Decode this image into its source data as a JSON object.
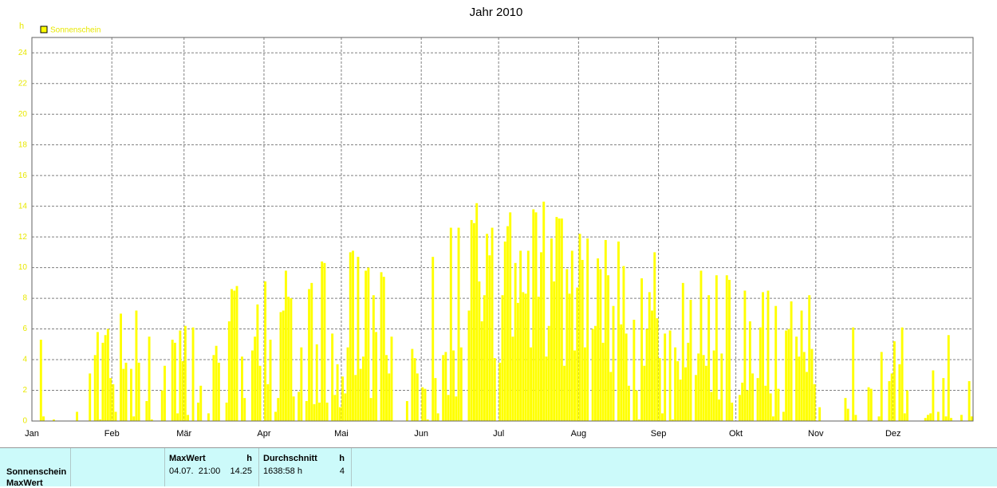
{
  "chart_data": {
    "type": "bar",
    "title": "Jahr 2010",
    "y_label": "h",
    "series": [
      {
        "name": "Sonnenschein",
        "color": "#ffff00",
        "values": [
          0,
          0,
          0,
          5.3,
          0.3,
          0,
          0,
          0,
          0.1,
          0,
          0,
          0,
          0,
          0,
          0,
          0,
          0,
          0.6,
          0,
          0,
          0,
          0,
          3.1,
          0,
          4.3,
          5.8,
          0.1,
          5.1,
          5.6,
          6,
          2.8,
          2.4,
          0.6,
          0,
          7,
          3.4,
          3.8,
          0,
          3.4,
          0.3,
          7.2,
          3.8,
          0,
          0,
          1.3,
          5.5,
          0.1,
          0,
          0,
          0,
          2,
          3.6,
          0,
          0,
          5.3,
          5.1,
          0.5,
          5.9,
          3.9,
          6.2,
          0.4,
          0,
          6.1,
          0,
          1.2,
          2.3,
          0,
          0,
          0.5,
          0,
          4.3,
          4.9,
          3.8,
          0,
          0,
          1.2,
          6.5,
          8.6,
          8.5,
          8.8,
          0,
          4.2,
          1.5,
          0,
          0,
          4.6,
          5.5,
          7.6,
          3.6,
          0,
          9.1,
          2.4,
          5.3,
          0,
          0.6,
          1.5,
          7.1,
          7.2,
          9.8,
          8.1,
          8,
          1.6,
          0,
          1.9,
          4.8,
          0,
          1.3,
          8.6,
          9,
          1.1,
          5,
          1.2,
          10.4,
          10.3,
          1.2,
          0,
          5.7,
          1.7,
          3.7,
          0.9,
          2.9,
          1.8,
          4.8,
          11,
          11.1,
          3,
          10.7,
          3.4,
          4.2,
          9.8,
          10,
          1.5,
          8.2,
          5.8,
          0,
          9.7,
          9.4,
          4.3,
          3.1,
          5.5,
          0,
          0,
          0,
          0,
          0,
          1.3,
          0,
          4.7,
          4.1,
          3.1,
          0,
          2.2,
          2.1,
          0.1,
          0,
          10.7,
          2.8,
          0.5,
          0,
          4.3,
          4.5,
          1.7,
          12.6,
          4.6,
          1.6,
          12.6,
          4.8,
          0,
          0,
          7.2,
          13.1,
          12.9,
          14.2,
          9.1,
          6.5,
          8.2,
          12.2,
          10.8,
          12.6,
          4.1,
          0,
          3.8,
          8.2,
          11.7,
          12.7,
          13.6,
          5.5,
          10.3,
          7.7,
          11.1,
          8.4,
          8.3,
          11.1,
          4.8,
          13.8,
          13.6,
          8.1,
          11,
          14.3,
          4.2,
          6.2,
          11.9,
          9.1,
          13.3,
          13.2,
          13.2,
          3.6,
          9.9,
          8.3,
          11.1,
          4.6,
          8.7,
          12.2,
          10.5,
          4.8,
          11.9,
          0,
          6,
          6.2,
          10.6,
          9.9,
          5.1,
          11.8,
          9.5,
          3.2,
          7.5,
          0,
          11.7,
          6.3,
          10.1,
          5.7,
          2.3,
          0,
          6.6,
          2,
          0.1,
          9.3,
          3.6,
          6,
          8.4,
          7.2,
          11,
          6.7,
          4.1,
          0.5,
          5.7,
          0,
          5.9,
          0.1,
          4.8,
          3.9,
          2.7,
          9,
          3.5,
          5.1,
          7.9,
          0,
          3,
          4.4,
          9.8,
          4.3,
          3.6,
          8.2,
          1.9,
          4.6,
          9.5,
          1.4,
          4.4,
          0,
          9.5,
          9.2,
          1.2,
          0,
          0,
          1.7,
          2.5,
          8.5,
          2,
          6.5,
          3.1,
          0,
          2.8,
          6.1,
          8.4,
          2.3,
          8.5,
          1.8,
          0.3,
          7.5,
          2.1,
          0,
          0.6,
          5.9,
          6,
          7.8,
          0,
          5.5,
          4.2,
          7.2,
          4.5,
          3.2,
          8.2,
          4.7,
          2.4,
          0,
          0.9,
          0,
          0,
          0,
          0,
          0,
          0,
          0,
          0,
          0,
          1.5,
          0.8,
          0,
          6.1,
          0.4,
          0,
          0,
          0,
          0,
          2.2,
          2.1,
          0,
          0,
          0.3,
          4.5,
          0,
          0,
          2.6,
          3.1,
          5.2,
          0,
          3.7,
          6.1,
          0.5,
          2,
          0,
          0,
          0,
          0,
          0,
          0,
          0.2,
          0.4,
          0.5,
          3.3,
          0,
          0.6,
          0,
          2.8,
          0.3,
          5.6,
          0.2,
          0,
          0,
          0,
          0.4,
          0,
          0,
          2.6,
          0.3
        ]
      }
    ],
    "xlim": [
      0,
      365
    ],
    "xticks": [
      {
        "value": 0,
        "label": "Jan"
      },
      {
        "value": 31,
        "label": "Feb"
      },
      {
        "value": 59,
        "label": "Mär"
      },
      {
        "value": 90,
        "label": "Apr"
      },
      {
        "value": 120,
        "label": "Mai"
      },
      {
        "value": 151,
        "label": "Jun"
      },
      {
        "value": 181,
        "label": "Jul"
      },
      {
        "value": 212,
        "label": "Aug"
      },
      {
        "value": 243,
        "label": "Sep"
      },
      {
        "value": 273,
        "label": "Okt"
      },
      {
        "value": 304,
        "label": "Nov"
      },
      {
        "value": 334,
        "label": "Dez"
      }
    ],
    "ylim": [
      0,
      25
    ],
    "yticks": [
      0,
      2,
      4,
      6,
      8,
      10,
      12,
      14,
      16,
      18,
      20,
      22,
      24
    ],
    "grid": true,
    "legend": "top-left"
  },
  "table": {
    "row_labels": [
      "Sonnenschein",
      "MaxWert"
    ],
    "columns": [
      {
        "header": "MaxWert",
        "unit": "h",
        "cells": [
          "04.07.  21:00",
          "14.25"
        ]
      },
      {
        "header": "Durchschnitt",
        "unit": "h",
        "cells": [
          "1638:58 h",
          "4"
        ]
      }
    ]
  }
}
